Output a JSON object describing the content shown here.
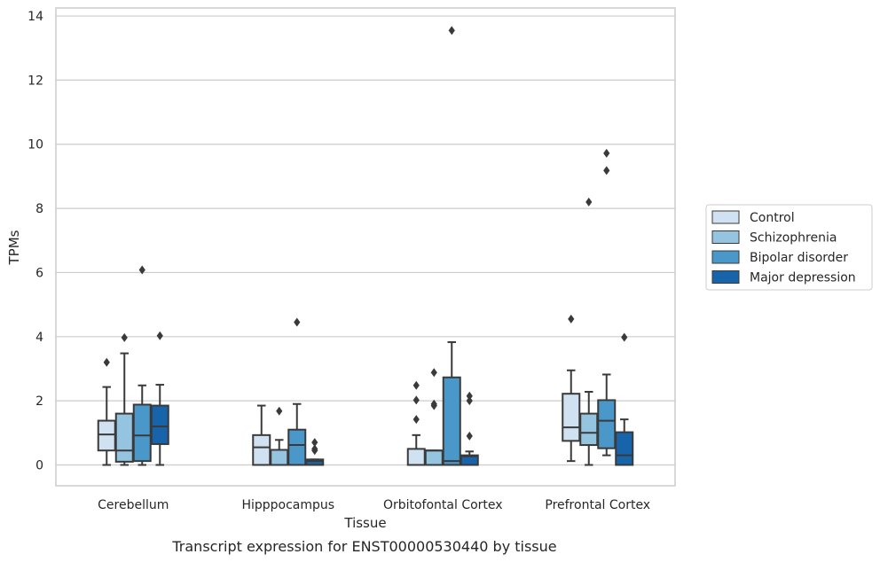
{
  "chart_data": {
    "type": "box",
    "title": "",
    "caption": "Transcript expression for ENST00000530440 by tissue",
    "xlabel": "Tissue",
    "ylabel": "TPMs",
    "ylim": [
      -0.65,
      14.25
    ],
    "yticks": [
      0,
      2,
      4,
      6,
      8,
      10,
      12,
      14
    ],
    "grid": "horizontal",
    "legend_position": "right",
    "categories": [
      "Cerebellum",
      "Hipppocampus",
      "Orbitofontal Cortex",
      "Prefrontal Cortex"
    ],
    "series": [
      {
        "name": "Control",
        "color": "#d0e1f2",
        "boxes": [
          {
            "whisker_low": 0.0,
            "q1": 0.45,
            "median": 0.95,
            "q3": 1.38,
            "whisker_high": 2.43,
            "outliers": [
              3.2
            ]
          },
          {
            "whisker_low": 0.0,
            "q1": 0.0,
            "median": 0.55,
            "q3": 0.93,
            "whisker_high": 1.85,
            "outliers": []
          },
          {
            "whisker_low": 0.0,
            "q1": 0.0,
            "median": 0.0,
            "q3": 0.5,
            "whisker_high": 0.93,
            "outliers": [
              1.42,
              2.02,
              2.48
            ]
          },
          {
            "whisker_low": 0.12,
            "q1": 0.75,
            "median": 1.17,
            "q3": 2.22,
            "whisker_high": 2.95,
            "outliers": [
              4.55
            ]
          }
        ]
      },
      {
        "name": "Schizophrenia",
        "color": "#94c4df",
        "boxes": [
          {
            "whisker_low": 0.0,
            "q1": 0.1,
            "median": 0.45,
            "q3": 1.6,
            "whisker_high": 3.48,
            "outliers": [
              3.97
            ]
          },
          {
            "whisker_low": 0.0,
            "q1": 0.0,
            "median": 0.47,
            "q3": 0.47,
            "whisker_high": 0.78,
            "outliers": [
              1.68
            ]
          },
          {
            "whisker_low": 0.0,
            "q1": 0.0,
            "median": 0.45,
            "q3": 0.45,
            "whisker_high": 0.45,
            "outliers": [
              1.85,
              1.9,
              2.88
            ]
          },
          {
            "whisker_low": 0.0,
            "q1": 0.62,
            "median": 1.0,
            "q3": 1.6,
            "whisker_high": 2.28,
            "outliers": [
              8.2
            ]
          }
        ]
      },
      {
        "name": "Bipolar disorder",
        "color": "#4a98c9",
        "boxes": [
          {
            "whisker_low": 0.0,
            "q1": 0.12,
            "median": 0.92,
            "q3": 1.88,
            "whisker_high": 2.48,
            "outliers": [
              6.08
            ]
          },
          {
            "whisker_low": 0.0,
            "q1": 0.0,
            "median": 0.62,
            "q3": 1.1,
            "whisker_high": 1.9,
            "outliers": [
              4.45
            ]
          },
          {
            "whisker_low": 0.0,
            "q1": 0.0,
            "median": 0.12,
            "q3": 2.73,
            "whisker_high": 3.83,
            "outliers": [
              13.55
            ]
          },
          {
            "whisker_low": 0.3,
            "q1": 0.52,
            "median": 1.38,
            "q3": 2.02,
            "whisker_high": 2.82,
            "outliers": [
              9.18,
              9.72
            ]
          }
        ]
      },
      {
        "name": "Major depression",
        "color": "#1764ab",
        "boxes": [
          {
            "whisker_low": 0.0,
            "q1": 0.65,
            "median": 1.2,
            "q3": 1.85,
            "whisker_high": 2.5,
            "outliers": [
              4.03
            ]
          },
          {
            "whisker_low": 0.0,
            "q1": 0.0,
            "median": 0.12,
            "q3": 0.17,
            "whisker_high": 0.17,
            "outliers": [
              0.45,
              0.5,
              0.7
            ]
          },
          {
            "whisker_low": 0.0,
            "q1": 0.0,
            "median": 0.27,
            "q3": 0.3,
            "whisker_high": 0.42,
            "outliers": [
              0.9,
              2.0,
              2.15
            ]
          },
          {
            "whisker_low": 0.0,
            "q1": 0.0,
            "median": 0.3,
            "q3": 1.02,
            "whisker_high": 1.42,
            "outliers": [
              3.98
            ]
          }
        ]
      }
    ]
  }
}
